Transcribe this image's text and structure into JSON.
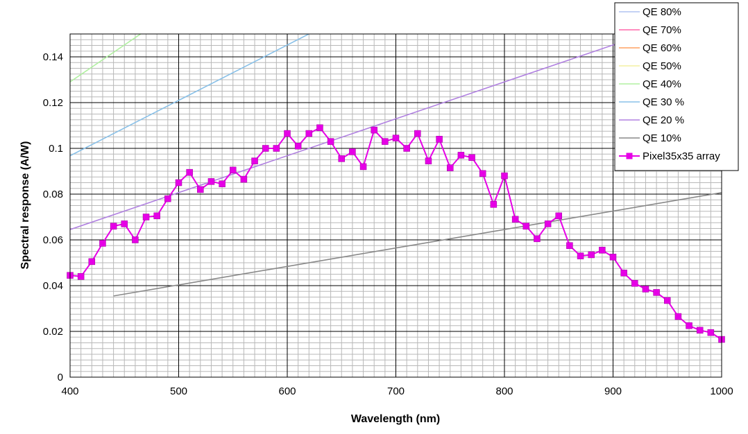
{
  "chart_data": {
    "type": "line",
    "title": "",
    "xlabel": "Wavelength (nm)",
    "ylabel": "Spectral response (A/W)",
    "xlim": [
      400,
      1000
    ],
    "ylim": [
      0,
      0.15
    ],
    "x_ticks": [
      "400",
      "500",
      "600",
      "700",
      "800",
      "900",
      "1000"
    ],
    "y_ticks": [
      "0",
      "0.02",
      "0.04",
      "0.06",
      "0.08",
      "0.1",
      "0.12",
      "0.14"
    ],
    "grid": "major and minor",
    "legend_position": "top-right",
    "series": [
      {
        "name": "QE 80%",
        "color": "#b0c4f0",
        "qe": 0.8,
        "x": [
          400,
          1000
        ]
      },
      {
        "name": "QE 70%",
        "color": "#ff66aa",
        "qe": 0.7,
        "x": [
          400,
          1000
        ]
      },
      {
        "name": "QE 60%",
        "color": "#ffa060",
        "qe": 0.6,
        "x": [
          400,
          1000
        ]
      },
      {
        "name": "QE 50%",
        "color": "#f4f0a0",
        "qe": 0.5,
        "x": [
          400,
          1000
        ]
      },
      {
        "name": "QE 40%",
        "color": "#b0f0a0",
        "qe": 0.4,
        "x": [
          400,
          1000
        ]
      },
      {
        "name": "QE 30 %",
        "color": "#88c0e8",
        "qe": 0.3,
        "x": [
          400,
          1000
        ]
      },
      {
        "name": "QE 20 %",
        "color": "#b080e0",
        "qe": 0.2,
        "x": [
          400,
          1000
        ]
      },
      {
        "name": "QE 10%",
        "color": "#888888",
        "qe": 0.1,
        "x": [
          440,
          1000
        ]
      },
      {
        "name": "Pixel35x35 array",
        "color": "#e600e6",
        "marker": "square",
        "x": [
          400,
          410,
          420,
          430,
          440,
          450,
          460,
          470,
          480,
          490,
          500,
          510,
          520,
          530,
          540,
          550,
          560,
          570,
          580,
          590,
          600,
          610,
          620,
          630,
          640,
          650,
          660,
          670,
          680,
          690,
          700,
          710,
          720,
          730,
          740,
          750,
          760,
          770,
          780,
          790,
          800,
          810,
          820,
          830,
          840,
          850,
          860,
          870,
          880,
          890,
          900,
          910,
          920,
          930,
          940,
          950,
          960,
          970,
          980,
          990,
          1000
        ],
        "y": [
          0.0445,
          0.044,
          0.0505,
          0.0585,
          0.066,
          0.067,
          0.06,
          0.07,
          0.0705,
          0.078,
          0.085,
          0.0895,
          0.082,
          0.0855,
          0.0845,
          0.0905,
          0.0865,
          0.0945,
          0.1,
          0.1,
          0.1065,
          0.101,
          0.1065,
          0.109,
          0.103,
          0.0955,
          0.0985,
          0.092,
          0.108,
          0.103,
          0.1045,
          0.1,
          0.1065,
          0.0945,
          0.104,
          0.0915,
          0.097,
          0.096,
          0.089,
          0.0755,
          0.088,
          0.069,
          0.066,
          0.0605,
          0.067,
          0.0705,
          0.0575,
          0.053,
          0.0535,
          0.0555,
          0.0525,
          0.0455,
          0.041,
          0.0385,
          0.037,
          0.0335,
          0.0265,
          0.0225,
          0.0205,
          0.0195,
          0.0165
        ]
      }
    ]
  }
}
